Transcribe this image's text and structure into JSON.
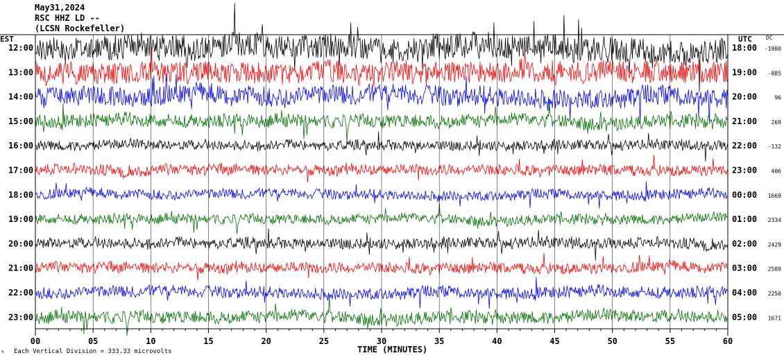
{
  "header": {
    "date": "May31,2024",
    "station": "RSC HHZ LD --",
    "network": "(LCSN Rockefeller)"
  },
  "labels": {
    "left_tz": "EST",
    "right_tz": "UTC",
    "dc": "DC",
    "xlabel": "TIME (MINUTES)",
    "scale_note": "Each Vertical Division =  333.33 microvolts"
  },
  "colors": {
    "trace_cycle": [
      "#000000",
      "#ff0000",
      "#0000ff",
      "#007000"
    ],
    "axis": "#000000",
    "background": "#ffffff"
  },
  "chart_data": {
    "type": "line",
    "description_kind": "helicorder seismogram",
    "x_ticks": [
      "00",
      "05",
      "10",
      "15",
      "20",
      "25",
      "30",
      "35",
      "40",
      "45",
      "50",
      "55",
      "60"
    ],
    "xlim": [
      0,
      60
    ],
    "rows": [
      {
        "est": "12:00",
        "utc": "18:00",
        "dc": "-1980",
        "color": "#000000",
        "amplitude": 3.0
      },
      {
        "est": "13:00",
        "utc": "19:00",
        "dc": "-885",
        "color": "#ff0000",
        "amplitude": 2.6
      },
      {
        "est": "14:00",
        "utc": "20:00",
        "dc": "96",
        "color": "#0000ff",
        "amplitude": 2.4
      },
      {
        "est": "15:00",
        "utc": "21:00",
        "dc": "269",
        "color": "#007000",
        "amplitude": 1.6
      },
      {
        "est": "16:00",
        "utc": "22:00",
        "dc": "-132",
        "color": "#000000",
        "amplitude": 1.2
      },
      {
        "est": "17:00",
        "utc": "23:00",
        "dc": "406",
        "color": "#ff0000",
        "amplitude": 1.3
      },
      {
        "est": "18:00",
        "utc": "00:00",
        "dc": "1669",
        "color": "#0000ff",
        "amplitude": 1.2
      },
      {
        "est": "19:00",
        "utc": "01:00",
        "dc": "2334",
        "color": "#007000",
        "amplitude": 1.2
      },
      {
        "est": "20:00",
        "utc": "02:00",
        "dc": "2429",
        "color": "#000000",
        "amplitude": 1.3
      },
      {
        "est": "21:00",
        "utc": "03:00",
        "dc": "2589",
        "color": "#ff0000",
        "amplitude": 1.3
      },
      {
        "est": "22:00",
        "utc": "04:00",
        "dc": "2250",
        "color": "#0000ff",
        "amplitude": 1.4
      },
      {
        "est": "23:00",
        "utc": "05:00",
        "dc": "1671",
        "color": "#007000",
        "amplitude": 1.5
      }
    ]
  }
}
